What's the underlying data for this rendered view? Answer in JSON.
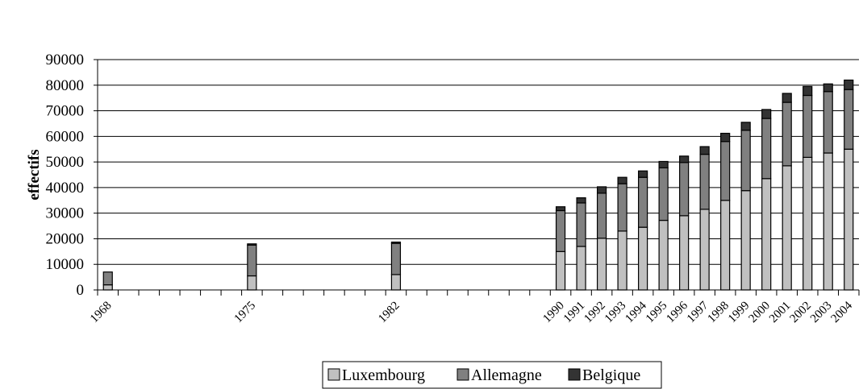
{
  "chart_data": {
    "type": "bar",
    "stacked": true,
    "ylabel": "effectifs",
    "xlabel": "",
    "ylim": [
      0,
      90000
    ],
    "y_ticks": [
      "0",
      "10000",
      "20000",
      "30000",
      "40000",
      "50000",
      "60000",
      "70000",
      "80000",
      "90000"
    ],
    "grid": true,
    "legend_position": "bottom",
    "categories": [
      "1968",
      "1975",
      "1982",
      "1990",
      "1991",
      "1992",
      "1993",
      "1994",
      "1995",
      "1996",
      "1997",
      "1998",
      "1999",
      "2000",
      "2001",
      "2002",
      "2003",
      "2004"
    ],
    "series": [
      {
        "name": "Luxembourg",
        "color": "#c0c0c0",
        "values": [
          2000,
          5500,
          6000,
          15000,
          17000,
          20200,
          23000,
          24500,
          27200,
          29000,
          31500,
          35000,
          38800,
          43500,
          48500,
          51800,
          53500,
          55000
        ]
      },
      {
        "name": "Allemagne",
        "color": "#808080",
        "values": [
          5000,
          12000,
          12200,
          16000,
          17000,
          17600,
          18500,
          19500,
          20500,
          20800,
          21500,
          23000,
          23600,
          23500,
          24800,
          24200,
          24000,
          23300
        ]
      },
      {
        "name": "Belgique",
        "color": "#333333",
        "values": [
          0,
          500,
          500,
          1500,
          2000,
          2500,
          2500,
          2500,
          2500,
          2500,
          3000,
          3200,
          3100,
          3500,
          3500,
          3500,
          3000,
          3700
        ]
      }
    ]
  }
}
